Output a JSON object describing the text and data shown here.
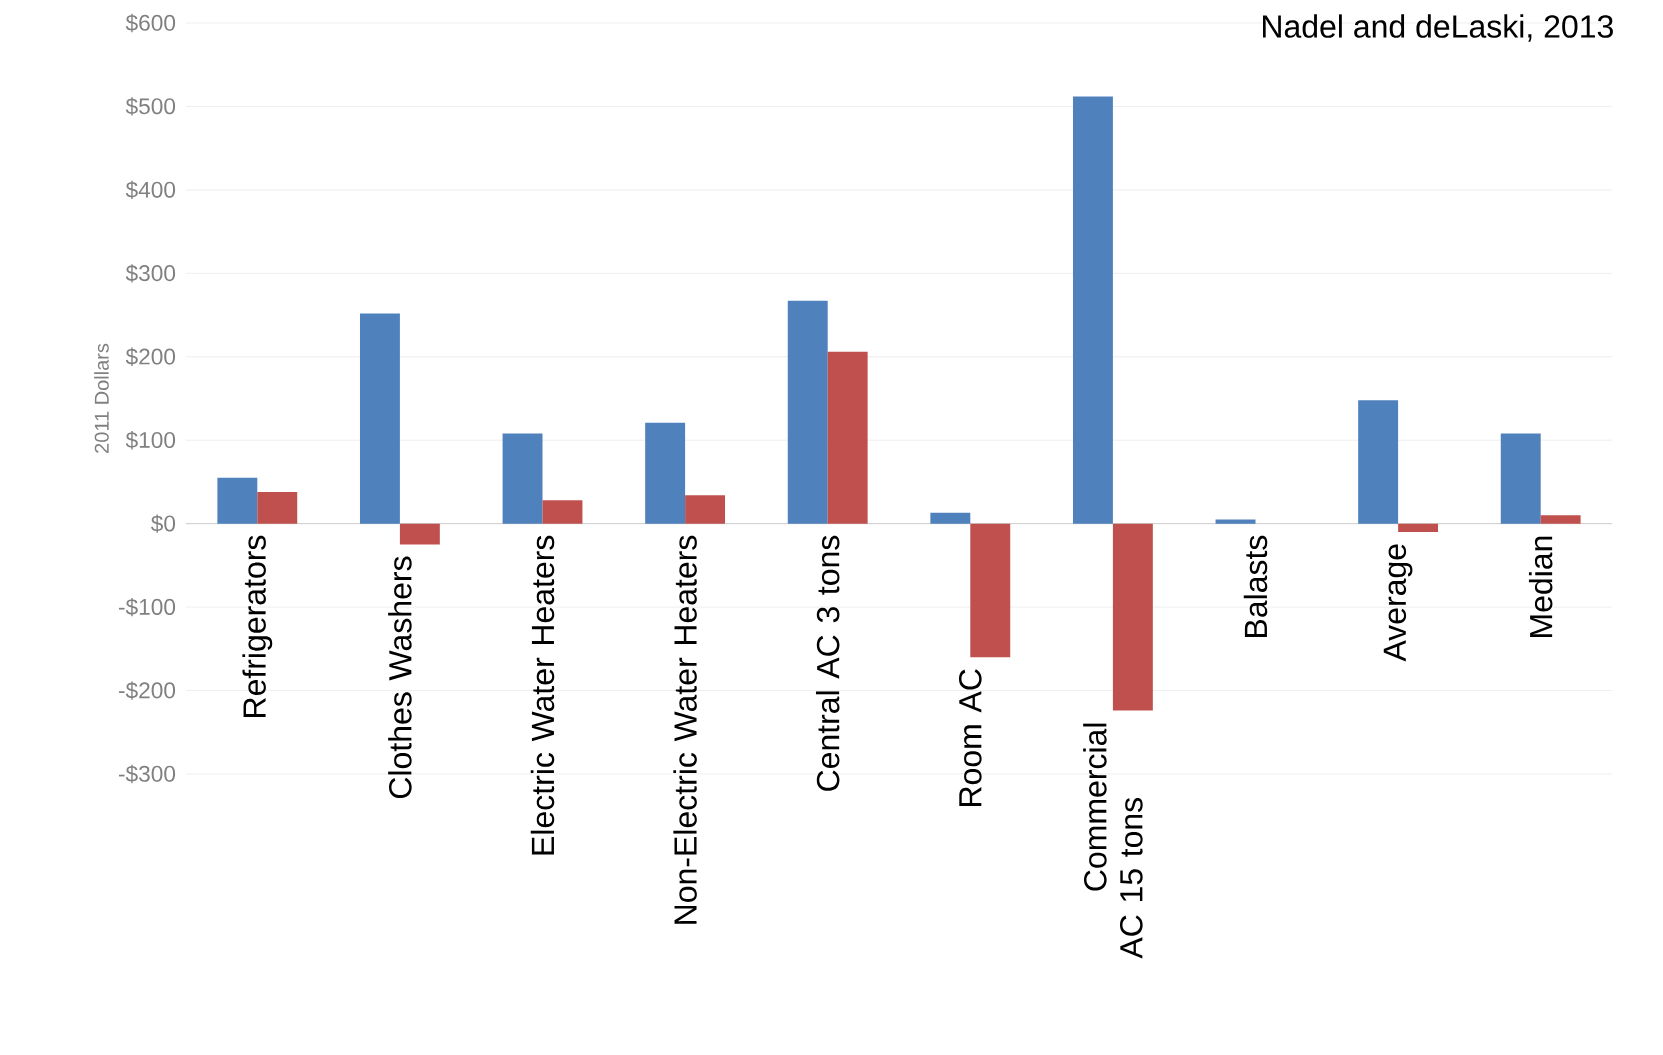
{
  "chart_data": {
    "type": "bar",
    "ylabel": "2011 Dollars",
    "annotations": [
      "Nadel and deLaski, 2013"
    ],
    "categories": [
      "Refrigerators",
      "Clothes Washers",
      "Electric Water Heaters",
      "Non-Electric Water Heaters",
      "Central AC 3 tons",
      "Room AC",
      "Commercial AC 15 tons",
      "Balasts",
      "Average",
      "Median"
    ],
    "series": [
      {
        "color": "#4f81bd",
        "values": [
          55,
          252,
          108,
          121,
          267,
          13,
          512,
          5,
          148,
          108
        ]
      },
      {
        "color": "#c0504d",
        "values": [
          38,
          -25,
          28,
          34,
          206,
          -160,
          -224,
          null,
          -10,
          10
        ]
      }
    ],
    "ylim": [
      -300,
      600
    ],
    "yticks": [
      {
        "value": -300,
        "label": "-$300"
      },
      {
        "value": -200,
        "label": "-$200"
      },
      {
        "value": -100,
        "label": "-$100"
      },
      {
        "value": 0,
        "label": "$0"
      },
      {
        "value": 100,
        "label": "$100"
      },
      {
        "value": 200,
        "label": "$200"
      },
      {
        "value": 300,
        "label": "$300"
      },
      {
        "value": 400,
        "label": "$400"
      },
      {
        "value": 500,
        "label": "$500"
      },
      {
        "value": 600,
        "label": "$600"
      }
    ],
    "grid": "y"
  }
}
